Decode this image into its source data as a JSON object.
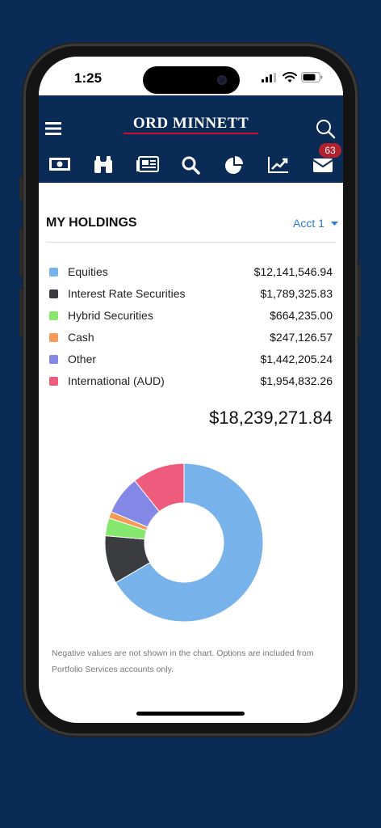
{
  "status_bar": {
    "time": "1:25"
  },
  "header": {
    "logo_text": "ORD MINNETT",
    "mail_badge": "63"
  },
  "holdings": {
    "title": "MY HOLDINGS",
    "account": "Acct 1",
    "total": "$18,239,271.84",
    "items": [
      {
        "label": "Equities",
        "value": "$12,141,546.94",
        "color": "#78b2ea"
      },
      {
        "label": "Interest Rate Securities",
        "value": "$1,789,325.83",
        "color": "#3a3c40"
      },
      {
        "label": "Hybrid Securities",
        "value": "$664,235.00",
        "color": "#86e76f"
      },
      {
        "label": "Cash",
        "value": "$247,126.57",
        "color": "#f59a57"
      },
      {
        "label": "Other",
        "value": "$1,442,205.24",
        "color": "#8387e6"
      },
      {
        "label": "International (AUD)",
        "value": "$1,954,832.26",
        "color": "#ee5b7d"
      }
    ],
    "note": "Negative values are not shown in the chart. Options are included from Portfolio Services accounts only."
  },
  "chart_data": {
    "type": "pie",
    "categories": [
      "Equities",
      "Interest Rate Securities",
      "Hybrid Securities",
      "Cash",
      "Other",
      "International (AUD)"
    ],
    "values": [
      12141546.94,
      1789325.83,
      664235.0,
      247126.57,
      1442205.24,
      1954832.26
    ],
    "colors": [
      "#78b2ea",
      "#3a3c40",
      "#86e76f",
      "#f59a57",
      "#8387e6",
      "#ee5b7d"
    ],
    "title": "",
    "donut": true
  }
}
